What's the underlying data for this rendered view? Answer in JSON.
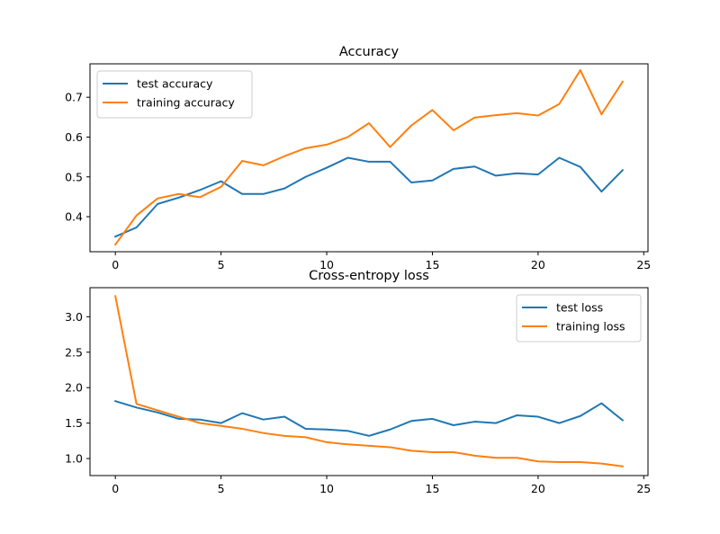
{
  "colors": {
    "test": "#1f77b4",
    "training": "#ff7f0e",
    "axes": "#000000",
    "background": "#ffffff",
    "legend_border": "#cccccc"
  },
  "chart_data": [
    {
      "type": "line",
      "title": "Accuracy",
      "xlabel": "",
      "ylabel": "",
      "xlim": [
        -1.2,
        25.2
      ],
      "ylim": [
        0.312,
        0.784
      ],
      "xticks": [
        0,
        5,
        10,
        15,
        20,
        25
      ],
      "xtick_labels": [
        "0",
        "5",
        "10",
        "15",
        "20",
        "25"
      ],
      "yticks": [
        0.4,
        0.5,
        0.6,
        0.7
      ],
      "ytick_labels": [
        "0.4",
        "0.5",
        "0.6",
        "0.7"
      ],
      "grid": false,
      "legend_position": "upper-left",
      "x": [
        0,
        1,
        2,
        3,
        4,
        5,
        6,
        7,
        8,
        9,
        10,
        11,
        12,
        13,
        14,
        15,
        16,
        17,
        18,
        19,
        20,
        21,
        22,
        23,
        24
      ],
      "series": [
        {
          "name": "test accuracy",
          "color": "#1f77b4",
          "values": [
            0.35,
            0.373,
            0.432,
            0.448,
            0.467,
            0.489,
            0.457,
            0.457,
            0.471,
            0.5,
            0.523,
            0.548,
            0.538,
            0.538,
            0.486,
            0.491,
            0.52,
            0.526,
            0.503,
            0.509,
            0.506,
            0.548,
            0.525,
            0.463,
            0.517
          ]
        },
        {
          "name": "training accuracy",
          "color": "#ff7f0e",
          "values": [
            0.33,
            0.403,
            0.446,
            0.457,
            0.449,
            0.475,
            0.54,
            0.529,
            0.552,
            0.572,
            0.581,
            0.6,
            0.635,
            0.575,
            0.629,
            0.668,
            0.617,
            0.649,
            0.655,
            0.66,
            0.654,
            0.683,
            0.768,
            0.657,
            0.739
          ]
        }
      ]
    },
    {
      "type": "line",
      "title": "Cross-entropy loss",
      "xlabel": "",
      "ylabel": "",
      "xlim": [
        -1.2,
        25.2
      ],
      "ylim": [
        0.76,
        3.41
      ],
      "xticks": [
        0,
        5,
        10,
        15,
        20,
        25
      ],
      "xtick_labels": [
        "0",
        "5",
        "10",
        "15",
        "20",
        "25"
      ],
      "yticks": [
        1.0,
        1.5,
        2.0,
        2.5,
        3.0
      ],
      "ytick_labels": [
        "1.0",
        "1.5",
        "2.0",
        "2.5",
        "3.0"
      ],
      "grid": false,
      "legend_position": "upper-right",
      "x": [
        0,
        1,
        2,
        3,
        4,
        5,
        6,
        7,
        8,
        9,
        10,
        11,
        12,
        13,
        14,
        15,
        16,
        17,
        18,
        19,
        20,
        21,
        22,
        23,
        24
      ],
      "series": [
        {
          "name": "test loss",
          "color": "#1f77b4",
          "values": [
            1.81,
            1.72,
            1.65,
            1.56,
            1.55,
            1.5,
            1.64,
            1.55,
            1.59,
            1.42,
            1.41,
            1.39,
            1.32,
            1.41,
            1.53,
            1.56,
            1.47,
            1.52,
            1.5,
            1.61,
            1.59,
            1.5,
            1.6,
            1.78,
            1.54
          ]
        },
        {
          "name": "training loss",
          "color": "#ff7f0e",
          "values": [
            3.29,
            1.77,
            1.68,
            1.59,
            1.5,
            1.46,
            1.42,
            1.36,
            1.32,
            1.3,
            1.23,
            1.2,
            1.18,
            1.16,
            1.11,
            1.09,
            1.09,
            1.04,
            1.01,
            1.01,
            0.96,
            0.95,
            0.95,
            0.93,
            0.89
          ]
        }
      ]
    }
  ]
}
